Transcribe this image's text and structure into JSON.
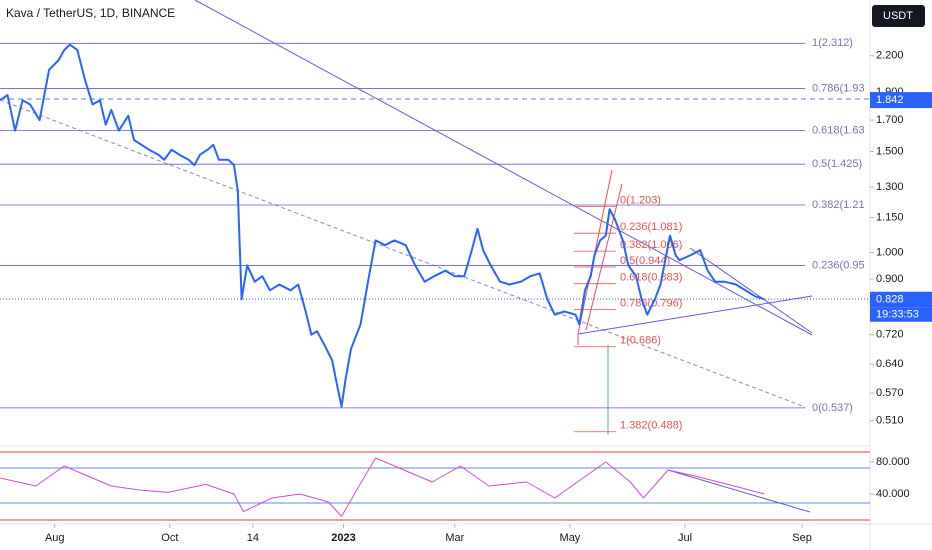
{
  "chart_data": [
    {
      "type": "line",
      "title": "Kava / TetherUS, 1D, BINANCE",
      "currency": "USDT",
      "log_scale": true,
      "color": "#2962ff",
      "xlim": [
        -29,
        432
      ],
      "xticks": [
        {
          "value": 0,
          "label": "Aug"
        },
        {
          "value": 61,
          "label": "Oct"
        },
        {
          "value": 105,
          "label": "14"
        },
        {
          "value": 153,
          "label": "2023"
        },
        {
          "value": 212,
          "label": "Mar"
        },
        {
          "value": 273,
          "label": "May"
        },
        {
          "value": 334,
          "label": "Jul"
        },
        {
          "value": 396,
          "label": "Sep"
        }
      ],
      "ylim": [
        0.461,
        2.75
      ],
      "yticks": [
        {
          "value": 2.2,
          "label": "2.200"
        },
        {
          "value": 1.9,
          "label": "1.900"
        },
        {
          "value": 1.7,
          "label": "1.700"
        },
        {
          "value": 1.5,
          "label": "1.500"
        },
        {
          "value": 1.3,
          "label": "1.300"
        },
        {
          "value": 1.15,
          "label": "1.150"
        },
        {
          "value": 1.0,
          "label": "1.000"
        },
        {
          "value": 0.9,
          "label": "0.900"
        },
        {
          "value": 0.72,
          "label": "0.720"
        },
        {
          "value": 0.64,
          "label": "0.640"
        },
        {
          "value": 0.57,
          "label": "0.570"
        },
        {
          "value": 0.51,
          "label": "0.510"
        }
      ],
      "x": [
        -29,
        -25,
        -21,
        -17,
        -13,
        -8,
        -5,
        -3,
        2,
        5,
        8,
        12,
        16,
        20,
        24,
        27,
        30,
        34,
        39,
        42,
        46,
        50,
        55,
        58,
        62,
        66,
        71,
        74,
        77,
        81,
        84,
        87,
        92,
        95,
        97,
        99,
        102,
        106,
        110,
        114,
        119,
        125,
        129,
        133,
        136,
        139,
        143,
        147,
        150,
        152,
        154,
        157,
        162,
        166,
        170,
        175,
        180,
        186,
        191,
        196,
        201,
        207,
        212,
        217,
        221,
        224,
        227,
        231,
        236,
        241,
        247,
        252,
        257,
        261,
        265,
        270,
        276,
        278,
        281,
        284,
        286,
        289,
        292,
        294,
        297,
        301,
        304,
        308,
        311,
        314,
        318,
        321,
        323,
        326,
        329,
        331,
        337,
        342,
        346,
        350,
        355,
        361,
        366,
        371,
        376
      ],
      "values": [
        1.84,
        1.88,
        1.63,
        1.84,
        1.81,
        1.7,
        1.92,
        2.08,
        2.16,
        2.25,
        2.3,
        2.25,
        2.0,
        1.81,
        1.84,
        1.67,
        1.77,
        1.63,
        1.73,
        1.57,
        1.54,
        1.51,
        1.48,
        1.45,
        1.51,
        1.48,
        1.45,
        1.42,
        1.48,
        1.51,
        1.54,
        1.45,
        1.45,
        1.42,
        1.28,
        0.83,
        0.95,
        0.89,
        0.91,
        0.86,
        0.88,
        0.86,
        0.88,
        0.79,
        0.72,
        0.73,
        0.69,
        0.65,
        0.58,
        0.54,
        0.6,
        0.68,
        0.75,
        0.89,
        1.05,
        1.03,
        1.05,
        1.03,
        0.95,
        0.89,
        0.91,
        0.93,
        0.91,
        0.91,
        1.01,
        1.1,
        1.01,
        0.95,
        0.89,
        0.88,
        0.89,
        0.91,
        0.92,
        0.83,
        0.78,
        0.79,
        0.78,
        0.75,
        0.86,
        0.91,
        0.99,
        1.05,
        1.07,
        1.19,
        1.14,
        1.05,
        0.95,
        0.91,
        0.83,
        0.78,
        0.83,
        0.88,
        0.95,
        1.07,
        0.99,
        0.97,
        0.99,
        1.01,
        0.93,
        0.89,
        0.89,
        0.88,
        0.86,
        0.84,
        0.83
      ],
      "fib_levels": [
        {
          "value": 2.312,
          "label": "1(2.312)"
        },
        {
          "value": 1.93,
          "label": "0.786(1.93"
        },
        {
          "value": 1.63,
          "label": "0.618(1.63"
        },
        {
          "value": 1.425,
          "label": "0.5(1.425)"
        },
        {
          "value": 1.21,
          "label": "0.382(1.21"
        },
        {
          "value": 0.95,
          "label": "0.236(0.95"
        },
        {
          "value": 0.537,
          "label": "0(0.537)"
        }
      ],
      "fib2_levels": [
        {
          "value": 1.203,
          "label": "0(1.203)"
        },
        {
          "value": 1.081,
          "label": "0.236(1.081)"
        },
        {
          "value": 1.006,
          "label": "0.382(1.006)"
        },
        {
          "value": 0.944,
          "label": "0.5(0.944)"
        },
        {
          "value": 0.883,
          "label": "0.618(0.883)"
        },
        {
          "value": 0.796,
          "label": "0.786(0.796)"
        },
        {
          "value": 0.686,
          "label": "1(0.686)"
        },
        {
          "value": 0.488,
          "label": "1.382(0.488)"
        }
      ],
      "marked_price": 1.842,
      "last_price": 0.828,
      "countdown": "19:33:53"
    },
    {
      "type": "line",
      "color": "#d24bd9",
      "ylim": [
        5,
        95
      ],
      "yticks": [
        {
          "value": 80,
          "label": "80.000"
        },
        {
          "value": 40,
          "label": "40.000"
        }
      ],
      "x": [
        -29,
        -10,
        5,
        15,
        30,
        45,
        60,
        80,
        95,
        100,
        115,
        130,
        145,
        152,
        160,
        170,
        185,
        200,
        215,
        230,
        250,
        265,
        280,
        292,
        305,
        312,
        325,
        340,
        360,
        376
      ],
      "values": [
        60,
        50,
        75,
        65,
        50,
        45,
        42,
        52,
        40,
        18,
        35,
        40,
        30,
        12,
        45,
        85,
        70,
        55,
        75,
        50,
        55,
        35,
        60,
        80,
        55,
        35,
        70,
        62,
        50,
        40
      ]
    }
  ]
}
